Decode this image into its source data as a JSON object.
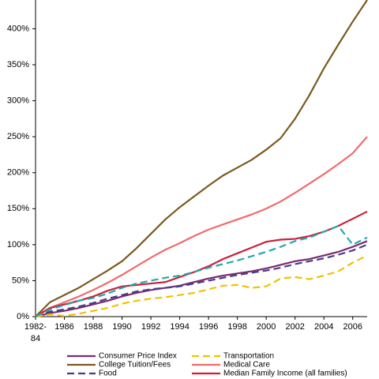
{
  "chart_data": {
    "type": "line",
    "x": [
      1984,
      1985,
      1986,
      1987,
      1988,
      1989,
      1990,
      1991,
      1992,
      1993,
      1994,
      1995,
      1996,
      1997,
      1998,
      1999,
      2000,
      2001,
      2002,
      2003,
      2004,
      2005,
      2006,
      2007
    ],
    "xlim": [
      1984,
      2007
    ],
    "xticks": [
      {
        "value": 1984,
        "label": "1982-84"
      },
      1986,
      1988,
      1990,
      1992,
      1994,
      1996,
      1998,
      2000,
      2002,
      2004,
      2006
    ],
    "ylim": [
      0,
      440
    ],
    "yticks": [
      {
        "value": 0,
        "label": "0%"
      },
      {
        "value": 50,
        "label": "50%"
      },
      {
        "value": 100,
        "label": "100%"
      },
      {
        "value": 150,
        "label": "150%"
      },
      {
        "value": 200,
        "label": "200%"
      },
      {
        "value": 250,
        "label": "250%"
      },
      {
        "value": 300,
        "label": "300%"
      },
      {
        "value": 350,
        "label": "350%"
      },
      {
        "value": 400,
        "label": "400%"
      }
    ],
    "series": [
      {
        "name": "Consumer Price Index",
        "color": "#7b2a6e",
        "dash": false,
        "values": [
          0,
          5,
          8,
          12,
          17,
          22,
          28,
          33,
          37,
          40,
          43,
          48,
          53,
          57,
          60,
          63,
          67,
          72,
          77,
          80,
          85,
          90,
          97,
          105
        ]
      },
      {
        "name": "College Tuition/Fees",
        "color": "#7b5a1f",
        "dash": false,
        "values": [
          0,
          20,
          30,
          40,
          52,
          64,
          77,
          95,
          115,
          135,
          152,
          167,
          182,
          196,
          207,
          218,
          232,
          248,
          275,
          308,
          345,
          378,
          410,
          440
        ]
      },
      {
        "name": "Food",
        "color": "#4a3b8c",
        "dash": true,
        "values": [
          0,
          7,
          10,
          14,
          19,
          25,
          30,
          35,
          38,
          40,
          42,
          46,
          50,
          54,
          58,
          61,
          64,
          68,
          73,
          77,
          81,
          86,
          92,
          100
        ]
      },
      {
        "name": "Transportation",
        "color": "#f2c200",
        "dash": true,
        "values": [
          0,
          3,
          1,
          4,
          8,
          12,
          18,
          22,
          25,
          27,
          30,
          33,
          38,
          43,
          44,
          40,
          42,
          53,
          55,
          52,
          57,
          63,
          75,
          85
        ]
      },
      {
        "name": "Medical Care",
        "color": "#f06b6b",
        "dash": false,
        "values": [
          0,
          12,
          20,
          28,
          37,
          47,
          58,
          70,
          82,
          93,
          102,
          112,
          121,
          128,
          135,
          142,
          150,
          160,
          172,
          185,
          198,
          212,
          227,
          250
        ]
      },
      {
        "name": "Median Family Income (all families)",
        "color": "#cc1f3a",
        "dash": false,
        "values": [
          0,
          12,
          17,
          22,
          28,
          36,
          42,
          44,
          46,
          48,
          55,
          62,
          70,
          80,
          88,
          96,
          104,
          107,
          108,
          112,
          118,
          126,
          136,
          146
        ]
      },
      {
        "color": "#22aaaa",
        "dash": true,
        "values": [
          0,
          10,
          16,
          22,
          26,
          32,
          40,
          46,
          50,
          54,
          57,
          62,
          68,
          73,
          78,
          84,
          90,
          97,
          105,
          110,
          118,
          126,
          100,
          110
        ]
      }
    ]
  }
}
